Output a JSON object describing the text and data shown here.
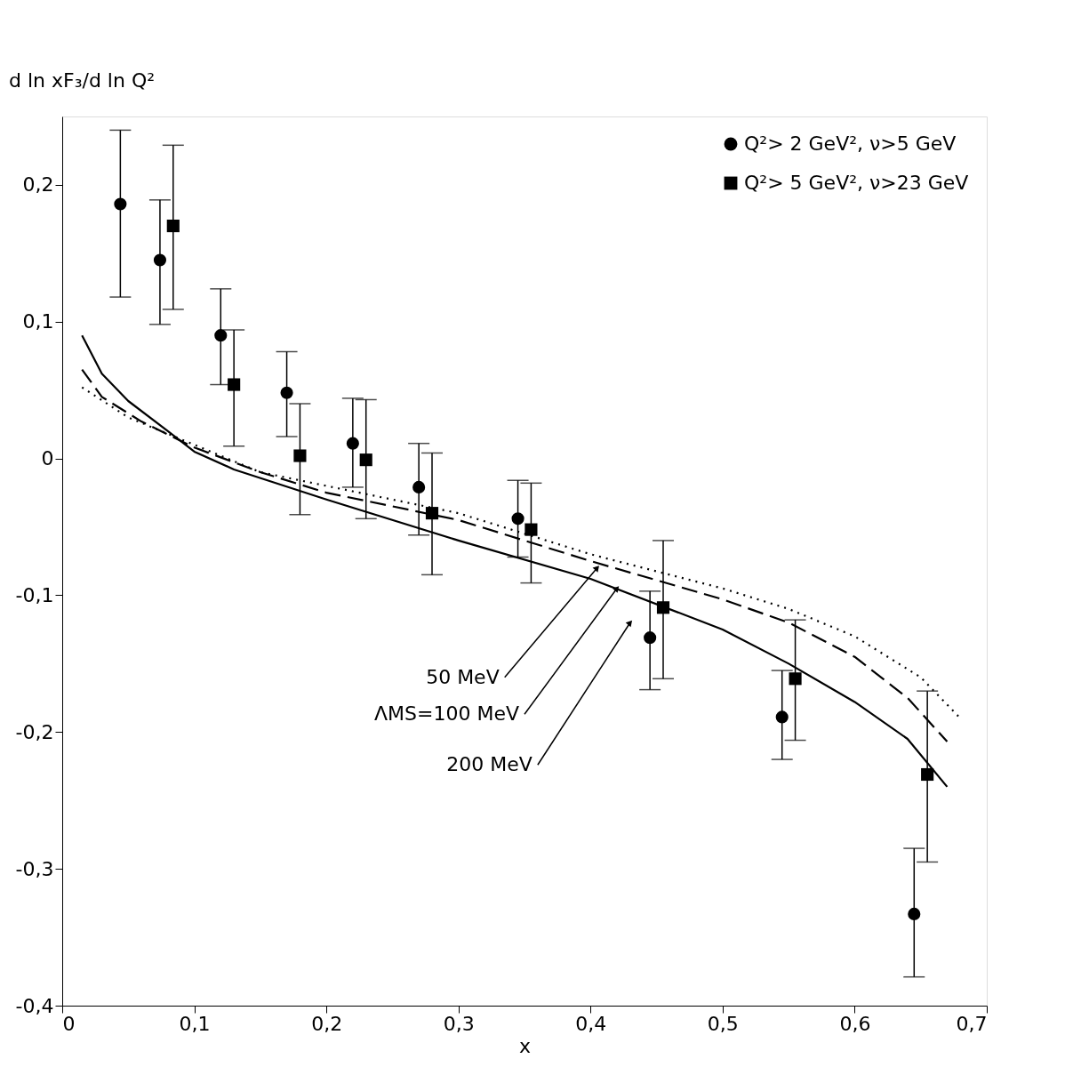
{
  "chart_data": {
    "type": "scatter",
    "xlabel": "x",
    "ylabel": "d ln xF₃/d ln Q²",
    "xlim": [
      0,
      0.7
    ],
    "ylim": [
      -0.4,
      0.25
    ],
    "xticks": [
      0,
      {
        "value": 0.1,
        "label": "0,1"
      },
      {
        "value": 0.2,
        "label": "0,2"
      },
      {
        "value": 0.3,
        "label": "0,3"
      },
      {
        "value": 0.4,
        "label": "0,4"
      },
      {
        "value": 0.5,
        "label": "0,5"
      },
      {
        "value": 0.6,
        "label": "0,6"
      },
      {
        "value": 0.7,
        "label": "0,7"
      }
    ],
    "yticks": [
      {
        "value": -0.4,
        "label": "-0,4"
      },
      {
        "value": -0.3,
        "label": "-0,3"
      },
      {
        "value": -0.2,
        "label": "-0,2"
      },
      {
        "value": -0.1,
        "label": "-0,1"
      },
      0,
      {
        "value": 0.1,
        "label": "0,1"
      },
      {
        "value": 0.2,
        "label": "0,2"
      }
    ],
    "grid": false,
    "legend": "top right",
    "series": [
      {
        "type": "scatter",
        "name": "Q²> 2 GeV², ν>5 GeV",
        "color": "#000000",
        "marker": "circle",
        "x": [
          0.044,
          0.074,
          0.12,
          0.17,
          0.22,
          0.27,
          0.345,
          0.445,
          0.545,
          0.645
        ],
        "values": [
          0.186,
          0.145,
          0.09,
          0.048,
          0.011,
          -0.021,
          -0.044,
          -0.131,
          -0.189,
          -0.333
        ],
        "errors": [
          [
            0.118,
            0.24
          ],
          [
            0.098,
            0.189
          ],
          [
            0.054,
            0.124
          ],
          [
            0.016,
            0.078
          ],
          [
            -0.021,
            0.044
          ],
          [
            -0.056,
            0.011
          ],
          [
            -0.072,
            -0.016
          ],
          [
            -0.169,
            -0.097
          ],
          [
            -0.22,
            -0.155
          ],
          [
            -0.379,
            -0.285
          ]
        ]
      },
      {
        "type": "scatter",
        "name": "Q²> 5 GeV², ν>23 GeV",
        "color": "#000000",
        "marker": "square",
        "x": [
          0.084,
          0.13,
          0.18,
          0.23,
          0.28,
          0.355,
          0.455,
          0.555,
          0.655
        ],
        "values": [
          0.17,
          0.054,
          0.002,
          -0.001,
          -0.04,
          -0.052,
          -0.109,
          -0.161,
          -0.231
        ],
        "errors": [
          [
            0.109,
            0.229
          ],
          [
            0.009,
            0.094
          ],
          [
            -0.041,
            0.04
          ],
          [
            -0.044,
            0.043
          ],
          [
            -0.085,
            0.004
          ],
          [
            -0.091,
            -0.018
          ],
          [
            -0.161,
            -0.06
          ],
          [
            -0.206,
            -0.118
          ],
          [
            -0.295,
            -0.17
          ]
        ]
      },
      {
        "type": "line",
        "color": "#000000",
        "line_style": "dotted",
        "x": [
          0.015,
          0.05,
          0.1,
          0.15,
          0.2,
          0.3,
          0.4,
          0.5,
          0.55,
          0.6,
          0.65,
          0.68
        ],
        "values": [
          0.052,
          0.03,
          0.01,
          -0.01,
          -0.02,
          -0.04,
          -0.07,
          -0.095,
          -0.11,
          -0.13,
          -0.16,
          -0.19
        ]
      },
      {
        "type": "line",
        "color": "#000000",
        "line_style": "dashed",
        "x": [
          0.015,
          0.03,
          0.06,
          0.1,
          0.15,
          0.2,
          0.3,
          0.4,
          0.5,
          0.55,
          0.6,
          0.64,
          0.67
        ],
        "values": [
          0.065,
          0.045,
          0.027,
          0.008,
          -0.01,
          -0.025,
          -0.045,
          -0.075,
          -0.103,
          -0.12,
          -0.145,
          -0.175,
          -0.207
        ]
      },
      {
        "type": "line",
        "color": "#000000",
        "line_style": "solid",
        "x": [
          0.015,
          0.03,
          0.05,
          0.08,
          0.1,
          0.13,
          0.2,
          0.3,
          0.4,
          0.5,
          0.55,
          0.6,
          0.64,
          0.67
        ],
        "values": [
          0.09,
          0.062,
          0.042,
          0.02,
          0.005,
          -0.008,
          -0.03,
          -0.06,
          -0.088,
          -0.125,
          -0.15,
          -0.178,
          -0.205,
          -0.24
        ]
      }
    ],
    "annotations": [
      {
        "text": "50 MeV",
        "x": 0.405,
        "y": -0.08
      },
      {
        "text": "ΛMS=100 MeV",
        "x": 0.42,
        "y": -0.095
      },
      {
        "text": "200 MeV",
        "x": 0.43,
        "y": -0.12
      }
    ]
  }
}
